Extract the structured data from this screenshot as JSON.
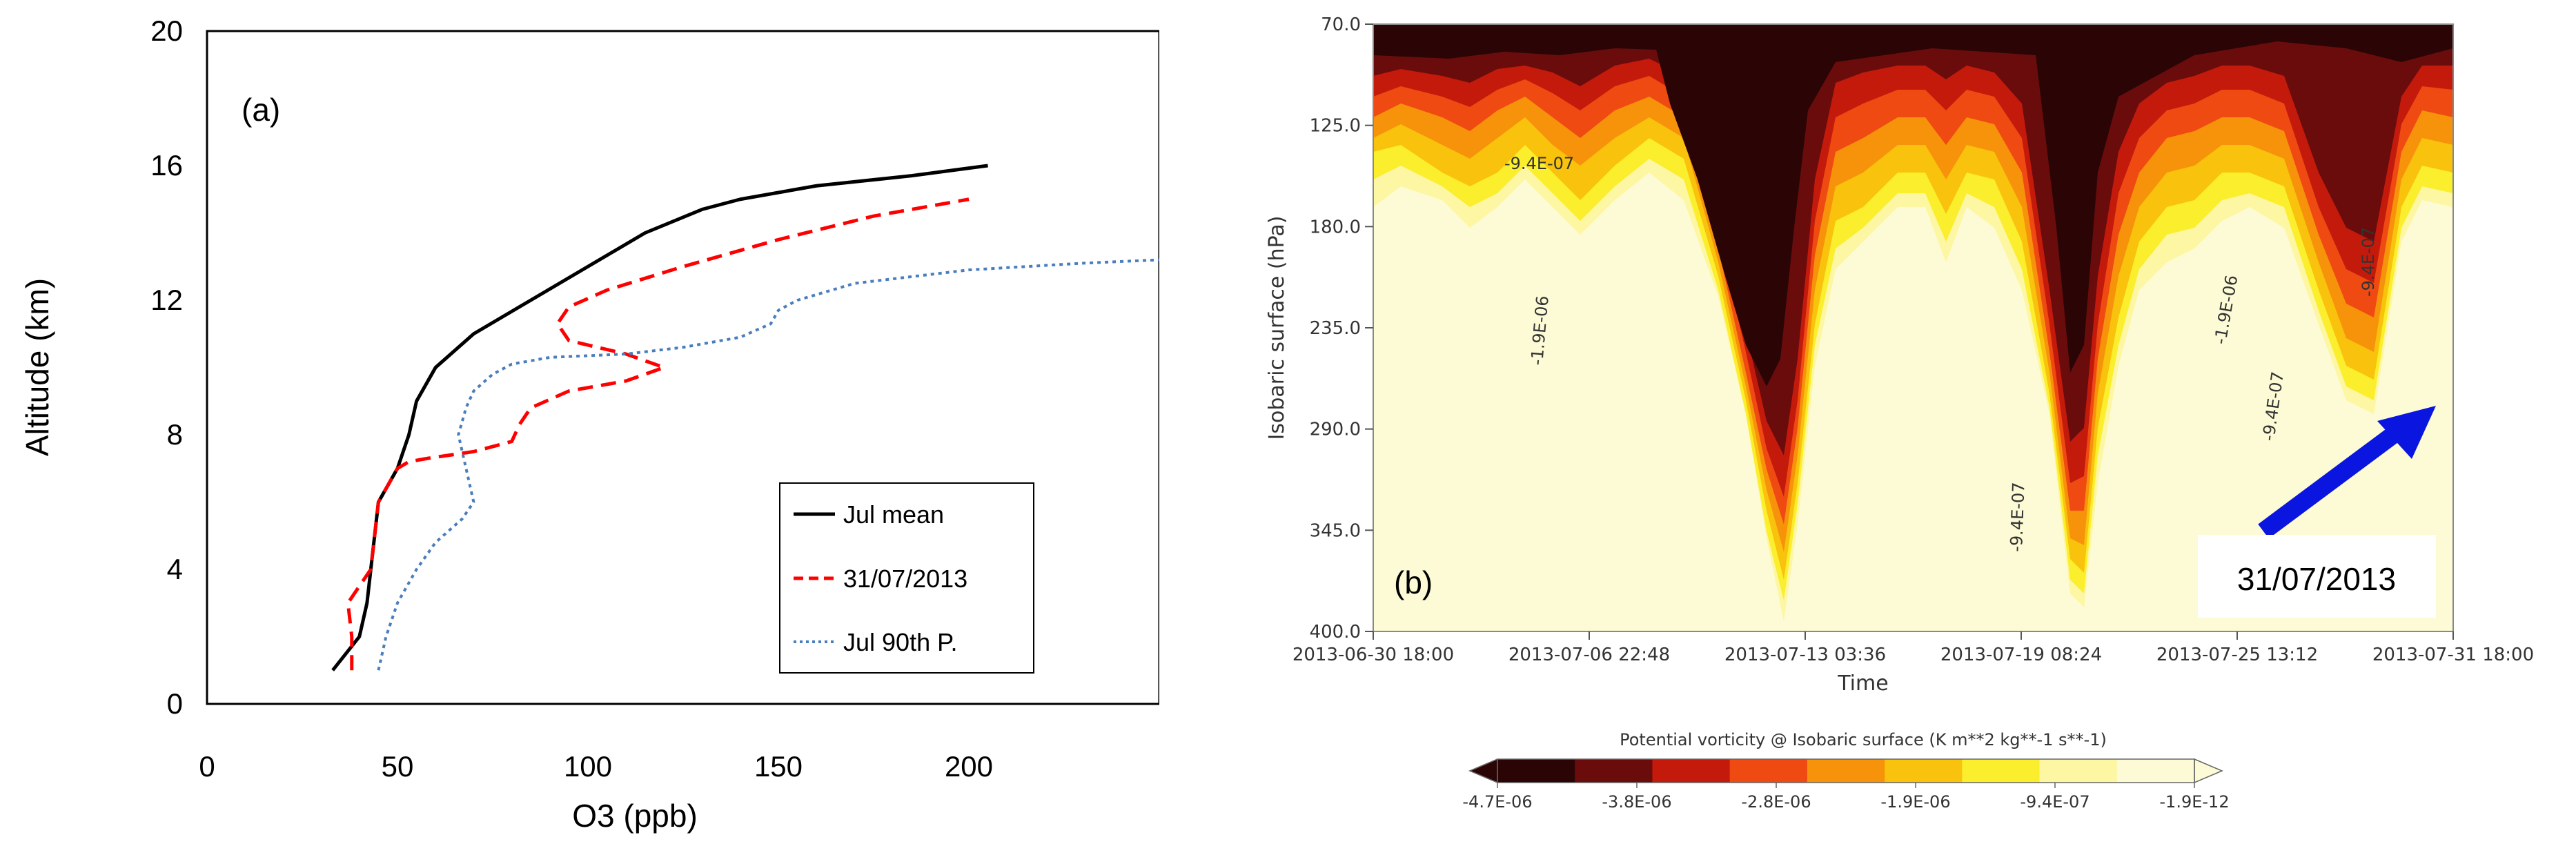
{
  "chart_data": [
    {
      "type": "line",
      "panel_label": "(a)",
      "xlabel": "O3 (ppb)",
      "ylabel": "Altitude (km)",
      "xlim": [
        0,
        250
      ],
      "ylim": [
        0,
        20
      ],
      "xticks": [
        0,
        50,
        100,
        150,
        200
      ],
      "yticks": [
        0,
        4,
        8,
        12,
        16,
        20
      ],
      "legend_position": "bottom-right",
      "grid": false,
      "series": [
        {
          "name": "Jul mean",
          "color": "#000000",
          "style": "solid",
          "x": [
            33,
            40,
            42,
            43,
            44,
            45,
            50,
            53,
            55,
            60,
            70,
            85,
            100,
            115,
            130,
            140,
            160,
            185,
            205
          ],
          "y": [
            1,
            2,
            3,
            4,
            5,
            6,
            7,
            8,
            9,
            10,
            11,
            12,
            13,
            14,
            14.7,
            15,
            15.4,
            15.7,
            16
          ]
        },
        {
          "name": "31/07/2013",
          "color": "#ff0000",
          "style": "dashed",
          "x": [
            38,
            38,
            37,
            40,
            43,
            44,
            45,
            48,
            50,
            53,
            58,
            70,
            80,
            82,
            85,
            95,
            110,
            120,
            110,
            95,
            92,
            95,
            105,
            125,
            150,
            175,
            200
          ],
          "y": [
            1,
            2,
            3,
            3.5,
            4,
            5,
            6,
            6.6,
            7,
            7.2,
            7.3,
            7.5,
            7.8,
            8.3,
            8.8,
            9.3,
            9.6,
            10,
            10.4,
            10.8,
            11.3,
            11.8,
            12.3,
            13,
            13.8,
            14.5,
            15
          ]
        },
        {
          "name": "Jul 90th P.",
          "color": "#4a7ebb",
          "style": "dotted",
          "x": [
            45,
            47,
            50,
            55,
            60,
            67,
            70,
            68,
            66,
            68,
            70,
            75,
            80,
            90,
            110,
            125,
            140,
            148,
            150,
            155,
            170,
            200,
            230,
            250
          ],
          "y": [
            1,
            2,
            3,
            4,
            4.8,
            5.5,
            6,
            7,
            8,
            8.8,
            9.3,
            9.8,
            10.1,
            10.3,
            10.4,
            10.6,
            10.9,
            11.3,
            11.7,
            12,
            12.5,
            12.9,
            13.1,
            13.2
          ]
        }
      ]
    },
    {
      "type": "heatmap",
      "panel_label": "(b)",
      "xlabel": "Time",
      "ylabel": "Isobaric surface (hPa)",
      "yticks": [
        "70.0",
        "125.0",
        "180.0",
        "235.0",
        "290.0",
        "345.0",
        "400.0"
      ],
      "xticks": [
        "2013-06-30  18:00",
        "2013-07-06  22:48",
        "2013-07-13  03:36",
        "2013-07-19  08:24",
        "2013-07-25  13:12",
        "2013-07-31  18:00"
      ],
      "contour_labels": [
        "-9.4E-07",
        "-1.9E-06",
        "-9.4E-07",
        "-1.9E-06",
        "-9.4E-07",
        "-9.4E-07"
      ],
      "annotation": "31/07/2013",
      "colorbar": {
        "title": "Potential vorticity @ Isobaric surface (K m**2 kg**-1 s**-1)",
        "labels": [
          "-4.7E-06",
          "-3.8E-06",
          "-2.8E-06",
          "-1.9E-06",
          "-9.4E-07",
          "-1.9E-12"
        ],
        "colors": [
          "#2b0505",
          "#6b0c0c",
          "#c41a0c",
          "#ef4a12",
          "#f7930a",
          "#f9c20c",
          "#fbee2c",
          "#fdf6a2",
          "#fdfbd5"
        ]
      }
    }
  ]
}
